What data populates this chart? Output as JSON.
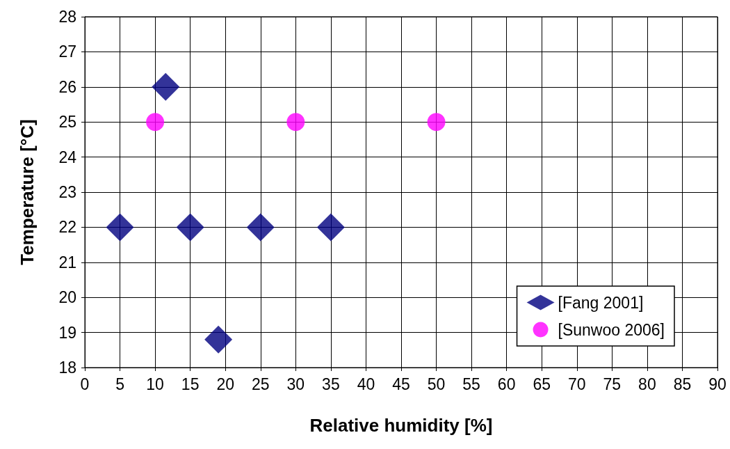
{
  "chart_data": {
    "type": "scatter",
    "xlabel": "Relative humidity [%]",
    "ylabel": "Temperature [°C]",
    "xlim": [
      0,
      90
    ],
    "xticks": [
      0,
      5,
      10,
      15,
      20,
      25,
      30,
      35,
      40,
      45,
      50,
      55,
      60,
      65,
      70,
      75,
      80,
      85,
      90
    ],
    "ylim": [
      18,
      28
    ],
    "yticks": [
      18,
      19,
      20,
      21,
      22,
      23,
      24,
      25,
      26,
      27,
      28
    ],
    "grid": true,
    "legend": "bottom right",
    "series": [
      {
        "name": "[Fang 2001]",
        "color": "#000080",
        "marker": "diamond",
        "x": [
          5,
          11.5,
          15,
          19,
          25,
          35
        ],
        "values": [
          22,
          26,
          22,
          18.8,
          22,
          22
        ]
      },
      {
        "name": "[Sunwoo 2006]",
        "color": "#ff00ff",
        "marker": "circle",
        "x": [
          10,
          30,
          50
        ],
        "values": [
          25,
          25,
          25
        ]
      }
    ]
  }
}
